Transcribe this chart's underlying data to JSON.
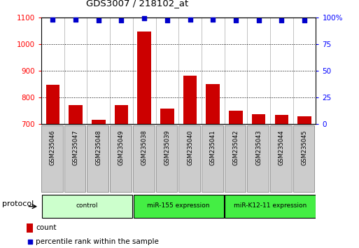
{
  "title": "GDS3007 / 218102_at",
  "samples": [
    "GSM235046",
    "GSM235047",
    "GSM235048",
    "GSM235049",
    "GSM235038",
    "GSM235039",
    "GSM235040",
    "GSM235041",
    "GSM235042",
    "GSM235043",
    "GSM235044",
    "GSM235045"
  ],
  "counts": [
    848,
    772,
    717,
    772,
    1048,
    757,
    882,
    851,
    751,
    737,
    733,
    729
  ],
  "percentile_ranks": [
    98,
    98,
    97,
    97,
    99,
    97,
    98,
    98,
    97,
    97,
    97,
    97
  ],
  "groups": [
    {
      "label": "control",
      "start": 0,
      "end": 4,
      "color": "#ccffcc"
    },
    {
      "label": "miR-155 expression",
      "start": 4,
      "end": 8,
      "color": "#44ee44"
    },
    {
      "label": "miR-K12-11 expression",
      "start": 8,
      "end": 12,
      "color": "#44ee44"
    }
  ],
  "ylim_left": [
    700,
    1100
  ],
  "ylim_right": [
    0,
    100
  ],
  "yticks_left": [
    700,
    800,
    900,
    1000,
    1100
  ],
  "yticks_right": [
    0,
    25,
    50,
    75,
    100
  ],
  "bar_color": "#cc0000",
  "dot_color": "#0000cc",
  "bar_width": 0.6,
  "legend_count_label": "count",
  "legend_pct_label": "percentile rank within the sample",
  "protocol_label": "protocol",
  "xlabel_color": "#888888",
  "sample_box_color": "#cccccc"
}
